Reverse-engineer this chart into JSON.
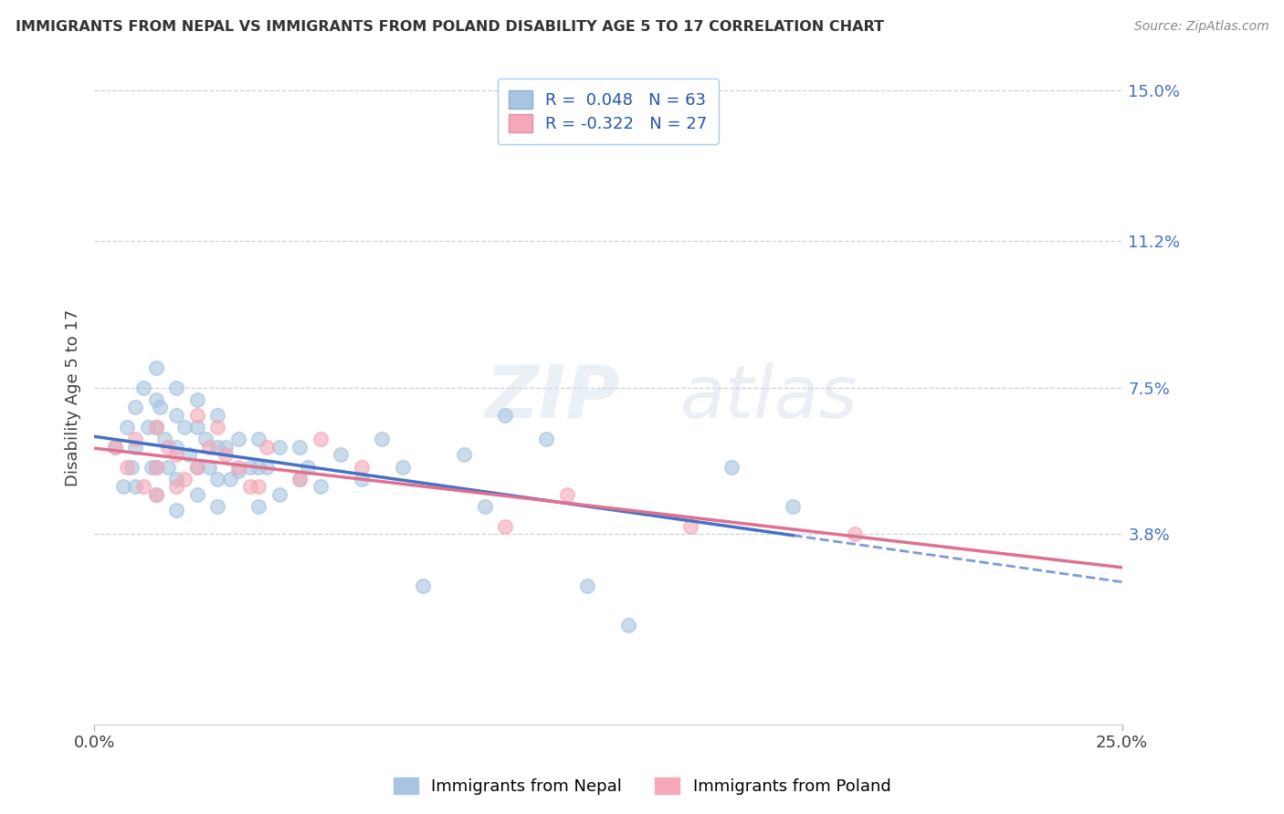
{
  "title": "IMMIGRANTS FROM NEPAL VS IMMIGRANTS FROM POLAND DISABILITY AGE 5 TO 17 CORRELATION CHART",
  "source": "Source: ZipAtlas.com",
  "ylabel": "Disability Age 5 to 17",
  "xlim": [
    0.0,
    0.25
  ],
  "ylim": [
    -0.01,
    0.155
  ],
  "xticks": [
    0.0,
    0.25
  ],
  "xticklabels": [
    "0.0%",
    "25.0%"
  ],
  "ytick_labels_right": [
    "3.8%",
    "7.5%",
    "11.2%",
    "15.0%"
  ],
  "ytick_values_right": [
    0.038,
    0.075,
    0.112,
    0.15
  ],
  "nepal_color": "#a8c4e0",
  "poland_color": "#f4a8b8",
  "nepal_line_color": "#4472c4",
  "poland_line_color": "#e07090",
  "nepal_R": 0.048,
  "nepal_N": 63,
  "poland_R": -0.322,
  "poland_N": 27,
  "background_color": "#ffffff",
  "grid_color": "#c8d0dc",
  "title_color": "#333333",
  "legend_label_color": "#2255aa",
  "nepal_scatter_x": [
    0.005,
    0.007,
    0.008,
    0.009,
    0.01,
    0.01,
    0.01,
    0.012,
    0.013,
    0.014,
    0.015,
    0.015,
    0.015,
    0.015,
    0.015,
    0.016,
    0.017,
    0.018,
    0.02,
    0.02,
    0.02,
    0.02,
    0.02,
    0.022,
    0.023,
    0.025,
    0.025,
    0.025,
    0.025,
    0.027,
    0.028,
    0.03,
    0.03,
    0.03,
    0.03,
    0.032,
    0.033,
    0.035,
    0.035,
    0.038,
    0.04,
    0.04,
    0.04,
    0.042,
    0.045,
    0.045,
    0.05,
    0.05,
    0.052,
    0.055,
    0.06,
    0.065,
    0.07,
    0.075,
    0.08,
    0.09,
    0.095,
    0.1,
    0.11,
    0.12,
    0.13,
    0.155,
    0.17
  ],
  "nepal_scatter_y": [
    0.06,
    0.05,
    0.065,
    0.055,
    0.07,
    0.06,
    0.05,
    0.075,
    0.065,
    0.055,
    0.08,
    0.072,
    0.065,
    0.055,
    0.048,
    0.07,
    0.062,
    0.055,
    0.075,
    0.068,
    0.06,
    0.052,
    0.044,
    0.065,
    0.058,
    0.072,
    0.065,
    0.055,
    0.048,
    0.062,
    0.055,
    0.068,
    0.06,
    0.052,
    0.045,
    0.06,
    0.052,
    0.062,
    0.054,
    0.055,
    0.062,
    0.055,
    0.045,
    0.055,
    0.06,
    0.048,
    0.06,
    0.052,
    0.055,
    0.05,
    0.058,
    0.052,
    0.062,
    0.055,
    0.025,
    0.058,
    0.045,
    0.068,
    0.062,
    0.025,
    0.015,
    0.055,
    0.045
  ],
  "poland_scatter_x": [
    0.005,
    0.008,
    0.01,
    0.012,
    0.015,
    0.015,
    0.015,
    0.018,
    0.02,
    0.02,
    0.022,
    0.025,
    0.025,
    0.028,
    0.03,
    0.032,
    0.035,
    0.038,
    0.04,
    0.042,
    0.05,
    0.055,
    0.065,
    0.1,
    0.115,
    0.145,
    0.185
  ],
  "poland_scatter_y": [
    0.06,
    0.055,
    0.062,
    0.05,
    0.065,
    0.055,
    0.048,
    0.06,
    0.058,
    0.05,
    0.052,
    0.068,
    0.055,
    0.06,
    0.065,
    0.058,
    0.055,
    0.05,
    0.05,
    0.06,
    0.052,
    0.062,
    0.055,
    0.04,
    0.048,
    0.04,
    0.038
  ],
  "legend_border_color": "#aaccee",
  "nepal_trend_solid_end": 0.17,
  "poland_trend_end": 0.25
}
